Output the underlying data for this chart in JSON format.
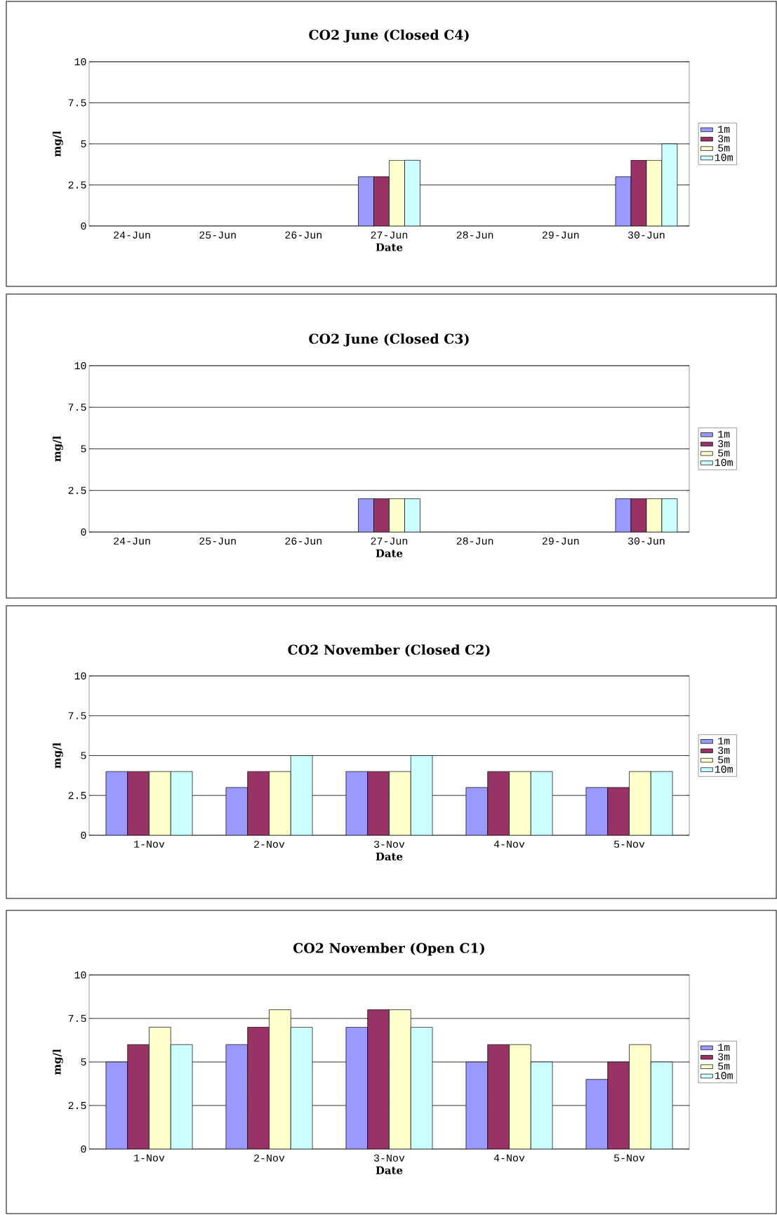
{
  "chart_data": [
    {
      "type": "bar",
      "title": "CO2 June (Closed C4)",
      "xlabel": "Date",
      "ylabel": "mg/l",
      "categories": [
        "24-Jun",
        "25-Jun",
        "26-Jun",
        "27-Jun",
        "28-Jun",
        "29-Jun",
        "30-Jun"
      ],
      "ylim": [
        0,
        10
      ],
      "yticks": [
        0,
        2.5,
        5,
        7.5,
        10
      ],
      "grid": "y",
      "legend": "right",
      "series": [
        {
          "name": "1m",
          "color": "#9999ff",
          "values": [
            null,
            null,
            null,
            3,
            null,
            null,
            3
          ]
        },
        {
          "name": "3m",
          "color": "#993366",
          "values": [
            null,
            null,
            null,
            3,
            null,
            null,
            4
          ]
        },
        {
          "name": "5m",
          "color": "#ffffcc",
          "values": [
            null,
            null,
            null,
            4,
            null,
            null,
            4
          ]
        },
        {
          "name": "10m",
          "color": "#ccffff",
          "values": [
            null,
            null,
            null,
            4,
            null,
            null,
            5
          ]
        }
      ]
    },
    {
      "type": "bar",
      "title": "CO2 June (Closed C3)",
      "xlabel": "Date",
      "ylabel": "mg/l",
      "categories": [
        "24-Jun",
        "25-Jun",
        "26-Jun",
        "27-Jun",
        "28-Jun",
        "29-Jun",
        "30-Jun"
      ],
      "ylim": [
        0,
        10
      ],
      "yticks": [
        0,
        2.5,
        5,
        7.5,
        10
      ],
      "grid": "y",
      "legend": "right",
      "series": [
        {
          "name": "1m",
          "color": "#9999ff",
          "values": [
            null,
            null,
            null,
            2,
            null,
            null,
            2
          ]
        },
        {
          "name": "3m",
          "color": "#993366",
          "values": [
            null,
            null,
            null,
            2,
            null,
            null,
            2
          ]
        },
        {
          "name": "5m",
          "color": "#ffffcc",
          "values": [
            null,
            null,
            null,
            2,
            null,
            null,
            2
          ]
        },
        {
          "name": "10m",
          "color": "#ccffff",
          "values": [
            null,
            null,
            null,
            2,
            null,
            null,
            2
          ]
        }
      ]
    },
    {
      "type": "bar",
      "title": "CO2 November (Closed C2)",
      "xlabel": "Date",
      "ylabel": "mg/l",
      "categories": [
        "1-Nov",
        "2-Nov",
        "3-Nov",
        "4-Nov",
        "5-Nov"
      ],
      "ylim": [
        0,
        10
      ],
      "yticks": [
        0,
        2.5,
        5,
        7.5,
        10
      ],
      "grid": "y",
      "legend": "right",
      "series": [
        {
          "name": "1m",
          "color": "#9999ff",
          "values": [
            4,
            3,
            4,
            3,
            3
          ]
        },
        {
          "name": "3m",
          "color": "#993366",
          "values": [
            4,
            4,
            4,
            4,
            3
          ]
        },
        {
          "name": "5m",
          "color": "#ffffcc",
          "values": [
            4,
            4,
            4,
            4,
            4
          ]
        },
        {
          "name": "10m",
          "color": "#ccffff",
          "values": [
            4,
            5,
            5,
            4,
            4
          ]
        }
      ]
    },
    {
      "type": "bar",
      "title": "CO2 November (Open C1)",
      "xlabel": "Date",
      "ylabel": "mg/l",
      "categories": [
        "1-Nov",
        "2-Nov",
        "3-Nov",
        "4-Nov",
        "5-Nov"
      ],
      "ylim": [
        0,
        10
      ],
      "yticks": [
        0,
        2.5,
        5,
        7.5,
        10
      ],
      "grid": "y",
      "legend": "right",
      "series": [
        {
          "name": "1m",
          "color": "#9999ff",
          "values": [
            5,
            6,
            7,
            5,
            4
          ]
        },
        {
          "name": "3m",
          "color": "#993366",
          "values": [
            6,
            7,
            8,
            6,
            5
          ]
        },
        {
          "name": "5m",
          "color": "#ffffcc",
          "values": [
            7,
            8,
            8,
            6,
            6
          ]
        },
        {
          "name": "10m",
          "color": "#ccffff",
          "values": [
            6,
            7,
            7,
            5,
            5
          ]
        }
      ]
    }
  ]
}
